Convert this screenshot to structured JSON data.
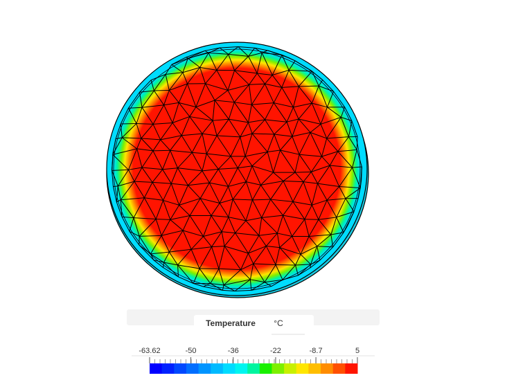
{
  "legend": {
    "title": "Temperature",
    "unit": "°C",
    "range": [
      -63.62,
      5
    ],
    "ticks": [
      -63.62,
      -50,
      -36,
      -22,
      -8.7,
      5
    ],
    "colors": [
      "#0000ff",
      "#0022ff",
      "#0048ff",
      "#006eff",
      "#0094ff",
      "#00baff",
      "#00dcff",
      "#00f5f0",
      "#00f5a0",
      "#19f000",
      "#7df000",
      "#c8f000",
      "#ffe600",
      "#ffbe00",
      "#ff8c00",
      "#ff5000",
      "#ff1400"
    ]
  }
}
